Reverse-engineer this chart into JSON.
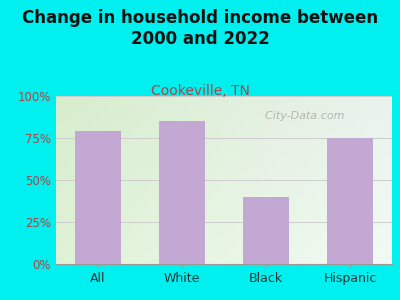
{
  "title": "Change in household income between\n2000 and 2022",
  "subtitle": "Cookeville, TN",
  "categories": [
    "All",
    "White",
    "Black",
    "Hispanic"
  ],
  "values": [
    79,
    85,
    40,
    75
  ],
  "bar_color": "#c4a8d4",
  "background_color": "#00f0f0",
  "plot_bg_color_topleft": "#d4ecc8",
  "plot_bg_color_topright": "#e8eeea",
  "plot_bg_color_bottomleft": "#e0f0d0",
  "plot_bg_color_bottomright": "#f4f8f4",
  "title_fontsize": 12,
  "subtitle_fontsize": 10,
  "subtitle_color": "#aa4444",
  "title_color": "#111111",
  "yticks": [
    0,
    25,
    50,
    75,
    100
  ],
  "ytick_labels": [
    "0%",
    "25%",
    "50%",
    "75%",
    "100%"
  ],
  "ymin": 0,
  "ymax": 100,
  "watermark": "  City-Data.com",
  "watermark_color": "#aaaaaa",
  "grid_color": "#cccccc",
  "tick_color": "#aa4444",
  "xlabel_color": "#333333"
}
